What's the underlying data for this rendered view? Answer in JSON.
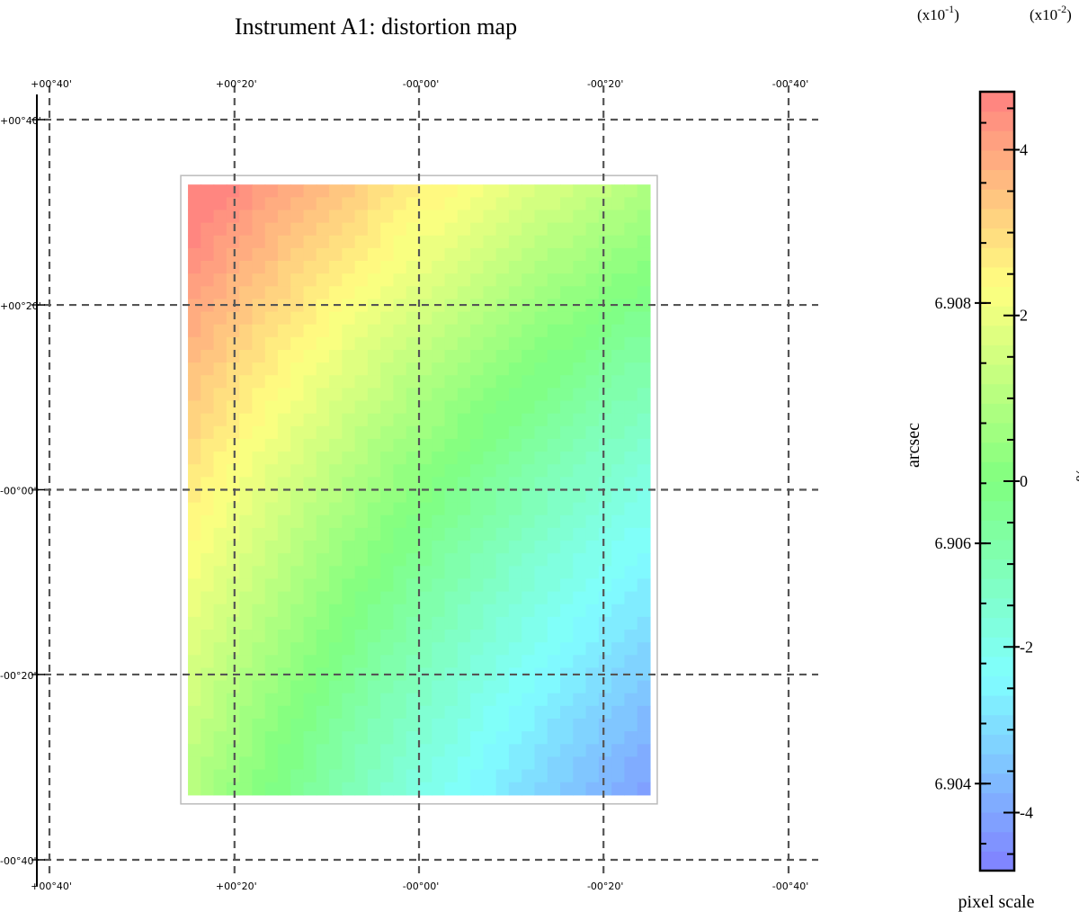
{
  "chart_data": {
    "type": "heatmap",
    "title": "Instrument A1: distortion map",
    "x_tick_labels": [
      "+00°40'",
      "+00°20'",
      "-00°00'",
      "-00°20'",
      "-00°40'"
    ],
    "y_tick_labels": [
      "+00°40'",
      "+00°20'",
      "-00°00'",
      "-00°20'",
      "-00°40'"
    ],
    "x_range_deg": [
      0.667,
      -0.667
    ],
    "y_range_deg": [
      -0.667,
      0.667
    ],
    "grid": true,
    "map_extent_deg": {
      "x": [
        0.417,
        -0.417
      ],
      "y": [
        -0.55,
        0.55
      ]
    },
    "map_field": {
      "description_values_percent_x1e-2": true,
      "corner_values": {
        "top_left": 4.7,
        "top_right": 0.6,
        "bottom_left": 0.7,
        "bottom_right": -4.5
      },
      "zero_contour_passes_center": true,
      "n_levels": 40
    },
    "colorbar": {
      "label_left": "arcsec",
      "label_right": "%",
      "title": "pixel scale",
      "left_multiplier": "(x10",
      "left_multiplier_exp": "-1",
      "right_multiplier": "(x10",
      "right_multiplier_exp": "-2",
      "left_ticks": [
        6.904,
        6.906,
        6.908
      ],
      "right_ticks": [
        -4,
        -2,
        0,
        2,
        4
      ],
      "range_percent_x1e-2": [
        -4.7,
        4.7
      ],
      "colormap": [
        "#8080ff",
        "#80ffff",
        "#80ff80",
        "#ffff80",
        "#ff8080"
      ]
    }
  }
}
